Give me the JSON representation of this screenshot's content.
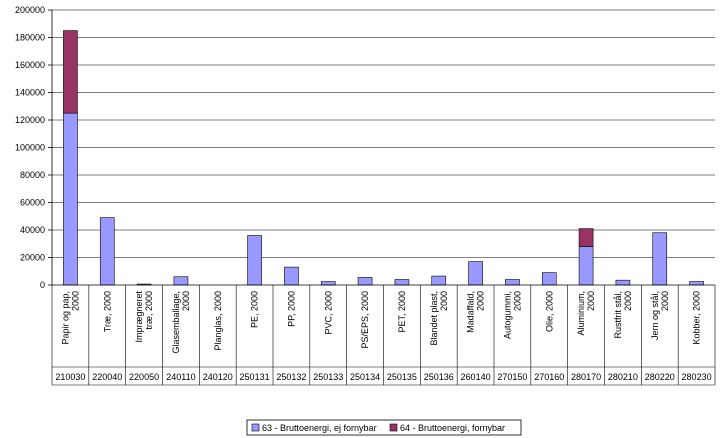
{
  "chart_data": {
    "type": "bar",
    "stacked": true,
    "categories": [
      "Papir og pap, 2000",
      "Træ, 2000",
      "Imprægneret træ, 2000",
      "Glasemballage, 2000",
      "Planglas, 2000",
      "PE, 2000",
      "PP, 2000",
      "PVC, 2000",
      "PS/EPS, 2000",
      "PET, 2000",
      "Blandet plast, 2000",
      "Madaffald, 2000",
      "Autogummi, 2000",
      "Olie, 2000",
      "Aluminium, 2000",
      "Rustfrit stål, 2000",
      "Jern og stål, 2000",
      "Kobber, 2000"
    ],
    "codes": [
      "210030",
      "220040",
      "220050",
      "240110",
      "240120",
      "250131",
      "250132",
      "250133",
      "250134",
      "250135",
      "250136",
      "260140",
      "270150",
      "270160",
      "280170",
      "280210",
      "280220",
      "280230"
    ],
    "series": [
      {
        "name": "63 - Bruttoenergi, ej fornybar",
        "color": "#9999ff",
        "values": [
          125000,
          49000,
          700,
          6000,
          0,
          36000,
          13000,
          2500,
          5500,
          4000,
          6500,
          17000,
          4000,
          9000,
          28000,
          3500,
          38000,
          2500
        ]
      },
      {
        "name": "64 - Bruttoenergi, fornybar",
        "color": "#993366",
        "values": [
          60000,
          0,
          0,
          0,
          0,
          0,
          0,
          0,
          0,
          0,
          0,
          0,
          0,
          0,
          13000,
          0,
          0,
          0
        ]
      }
    ],
    "ylim": [
      0,
      200000
    ],
    "yticks": [
      0,
      20000,
      40000,
      60000,
      80000,
      100000,
      120000,
      140000,
      160000,
      180000,
      200000
    ],
    "title": "",
    "xlabel": "",
    "ylabel": "",
    "grid": true,
    "legend_position": "bottom"
  }
}
